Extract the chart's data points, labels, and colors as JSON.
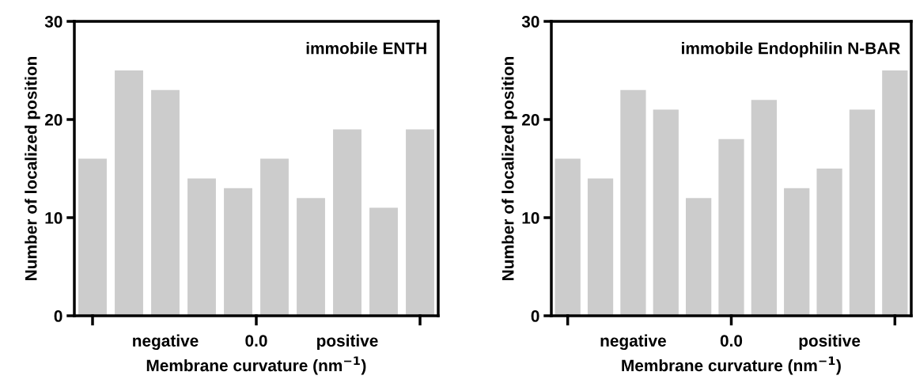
{
  "chart_data": [
    {
      "type": "bar",
      "categories": [
        null,
        null,
        "negative",
        null,
        null,
        null,
        null,
        "positive",
        null,
        null
      ],
      "values": [
        16,
        25,
        23,
        14,
        13,
        16,
        12,
        19,
        11,
        19
      ],
      "color": "#cccccc",
      "ylim": [
        0,
        30
      ],
      "yticks": [
        0,
        10,
        20,
        30
      ],
      "xlabel": "Membrane curvature (nm$^{−1}$)",
      "ylabel": "Number of localized position",
      "annotations": [
        "immobile ENTH",
        "0.0"
      ],
      "grid": false
    },
    {
      "type": "bar",
      "categories": [
        null,
        null,
        "negative",
        null,
        null,
        "0.0",
        null,
        null,
        "positive",
        null,
        null
      ],
      "values": [
        16,
        14,
        23,
        21,
        12,
        18,
        22,
        13,
        15,
        21,
        25
      ],
      "color": "#cccccc",
      "ylim": [
        0,
        30
      ],
      "yticks": [
        0,
        10,
        20,
        30
      ],
      "xlabel": "Membrane curvature (nm$^{−1}$)",
      "ylabel": "Number of localized position",
      "annotations": [
        "immobile Endophilin N-BAR"
      ],
      "grid": false
    }
  ]
}
